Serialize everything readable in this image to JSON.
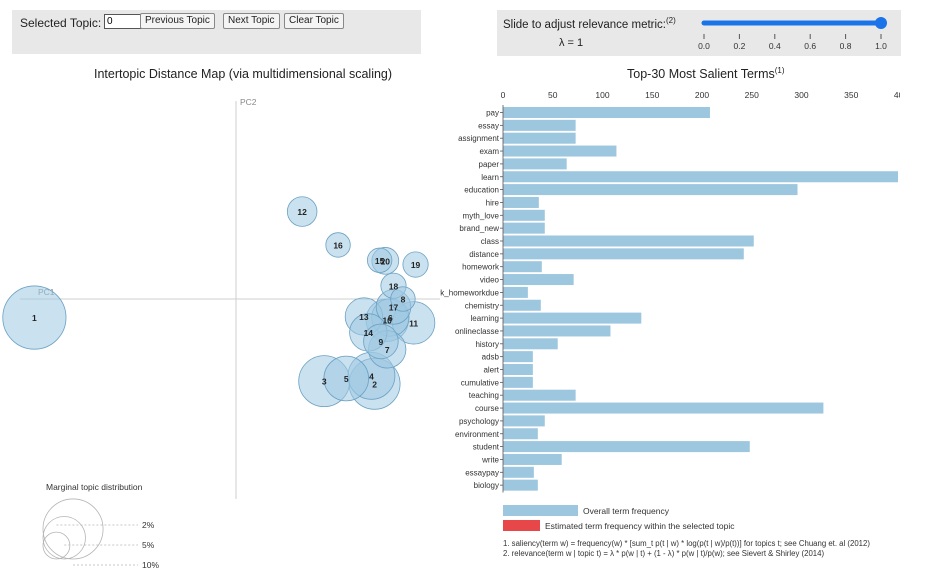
{
  "topic_controls": {
    "label": "Selected Topic:",
    "value": "0",
    "prev_label": "Previous Topic",
    "next_label": "Next Topic",
    "clear_label": "Clear Topic"
  },
  "lambda_controls": {
    "label": "Slide to adjust relevance metric:",
    "note": "(2)",
    "lambda_text": "λ = 1",
    "value": 1,
    "ticks": [
      "0.0",
      "0.2",
      "0.4",
      "0.6",
      "0.8",
      "1.0"
    ],
    "accent": "#1a73e8"
  },
  "colors": {
    "bubble_fill": "#9ec8e2",
    "bubble_stroke": "#6aa1c4",
    "bar_overall": "#9dc6df",
    "bar_estimated": "#e8474a"
  },
  "chart_data": [
    {
      "type": "scatter",
      "title": "Intertopic Distance Map (via multidimensional scaling)",
      "xlabel": "PC1",
      "ylabel": "PC2",
      "points": [
        {
          "topic": "1",
          "x": -0.32,
          "y": -0.035,
          "size": 10
        },
        {
          "topic": "2",
          "x": 0.22,
          "y": -0.16,
          "size": 6.5
        },
        {
          "topic": "3",
          "x": 0.14,
          "y": -0.155,
          "size": 6.5
        },
        {
          "topic": "4",
          "x": 0.215,
          "y": -0.145,
          "size": 5.5
        },
        {
          "topic": "5",
          "x": 0.175,
          "y": -0.15,
          "size": 5
        },
        {
          "topic": "6",
          "x": 0.245,
          "y": -0.035,
          "size": 3.5
        },
        {
          "topic": "7",
          "x": 0.24,
          "y": -0.095,
          "size": 3.5
        },
        {
          "topic": "8",
          "x": 0.265,
          "y": 0.0,
          "size": 1.5
        },
        {
          "topic": "9",
          "x": 0.23,
          "y": -0.08,
          "size": 3
        },
        {
          "topic": "10",
          "x": 0.24,
          "y": -0.04,
          "size": 4.5
        },
        {
          "topic": "11",
          "x": 0.282,
          "y": -0.045,
          "size": 4.5
        },
        {
          "topic": "12",
          "x": 0.105,
          "y": 0.165,
          "size": 2.2
        },
        {
          "topic": "13",
          "x": 0.203,
          "y": -0.033,
          "size": 3.5
        },
        {
          "topic": "14",
          "x": 0.21,
          "y": -0.063,
          "size": 3.5
        },
        {
          "topic": "15",
          "x": 0.228,
          "y": 0.073,
          "size": 1.5
        },
        {
          "topic": "16",
          "x": 0.162,
          "y": 0.102,
          "size": 1.5
        },
        {
          "topic": "17",
          "x": 0.25,
          "y": -0.015,
          "size": 3
        },
        {
          "topic": "18",
          "x": 0.25,
          "y": 0.025,
          "size": 1.6
        },
        {
          "topic": "19",
          "x": 0.285,
          "y": 0.065,
          "size": 1.6
        },
        {
          "topic": "20",
          "x": 0.237,
          "y": 0.072,
          "size": 1.8
        }
      ],
      "legend": {
        "title": "Marginal topic distribution",
        "entries": [
          {
            "label": "2%",
            "value": 2
          },
          {
            "label": "5%",
            "value": 5
          },
          {
            "label": "10%",
            "value": 10
          }
        ]
      }
    },
    {
      "type": "bar",
      "title": "Top-30 Most Salient Terms",
      "title_note": "(1)",
      "xlim": [
        0,
        400
      ],
      "xticks": [
        0,
        50,
        100,
        150,
        200,
        250,
        300,
        350,
        400
      ],
      "categories": [
        "pay",
        "essay",
        "assignment",
        "exam",
        "paper",
        "learn",
        "education",
        "hire",
        "myth_love",
        "brand_new",
        "class",
        "distance",
        "homework",
        "video",
        "homework_homeworkdue",
        "chemistry",
        "learning",
        "onlineclasse",
        "history",
        "adsb",
        "alert",
        "cumulative",
        "teaching",
        "course",
        "psychology",
        "environment",
        "student",
        "write",
        "essaypay",
        "biology"
      ],
      "series": [
        {
          "name": "Overall term frequency",
          "values": [
            208,
            73,
            73,
            114,
            64,
            397,
            296,
            36,
            42,
            42,
            252,
            242,
            39,
            71,
            25,
            38,
            139,
            108,
            55,
            30,
            30,
            30,
            73,
            322,
            42,
            35,
            248,
            59,
            31,
            35
          ]
        }
      ],
      "legend": [
        "Overall term frequency",
        "Estimated term frequency within the selected topic"
      ],
      "footnotes": [
        "1. saliency(term w) = frequency(w) * [sum_t p(t | w) * log(p(t | w)/p(t))] for topics t; see Chuang et. al (2012)",
        "2. relevance(term w | topic t) = λ * p(w | t) + (1 - λ) * p(w | t)/p(w); see Sievert & Shirley (2014)"
      ]
    }
  ]
}
